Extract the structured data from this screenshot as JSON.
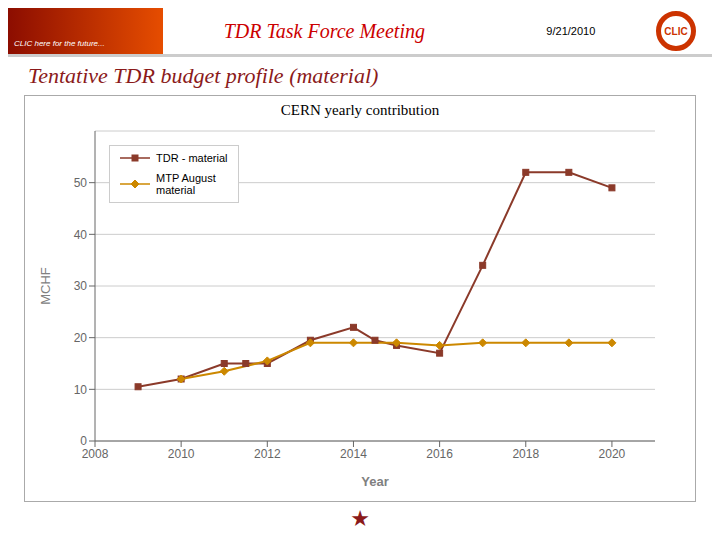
{
  "chart_data": {
    "type": "line",
    "title": "CERN yearly contribution",
    "subtitle": "Tentative TDR budget profile (material)",
    "annotations": [
      "TDR Task Force Meeting",
      "9/21/2010",
      "CLIC here for the future...",
      "CLIC",
      "★"
    ],
    "x_label": "Year",
    "y_label": "MCHF",
    "xlim": [
      2008,
      2021
    ],
    "xticks": [
      2008,
      2010,
      2012,
      2014,
      2016,
      2018,
      2020
    ],
    "ylim": [
      0,
      60
    ],
    "yticks": [
      0,
      10,
      20,
      30,
      40,
      50
    ],
    "grid": true,
    "legend": "upper left",
    "series": [
      {
        "name": "TDR - material",
        "color": "#8B3A2A",
        "marker": "square",
        "x": [
          2009,
          2010,
          2011,
          2011.5,
          2012,
          2013,
          2014,
          2014.5,
          2015,
          2016,
          2017,
          2018,
          2019,
          2020
        ],
        "values": [
          10.5,
          12.0,
          15.0,
          15.0,
          15.0,
          19.5,
          22.0,
          19.5,
          18.5,
          17.0,
          34.0,
          52.0,
          52.0,
          49.0
        ]
      },
      {
        "name": "MTP August\nmaterial",
        "color": "#CC8800",
        "marker": "diamond",
        "x": [
          2010,
          2011,
          2012,
          2013,
          2014,
          2015,
          2016,
          2017,
          2018,
          2019,
          2020
        ],
        "values": [
          12.0,
          13.5,
          15.5,
          19.0,
          19.0,
          19.0,
          18.5,
          19.0,
          19.0,
          19.0,
          19.0
        ]
      }
    ]
  }
}
